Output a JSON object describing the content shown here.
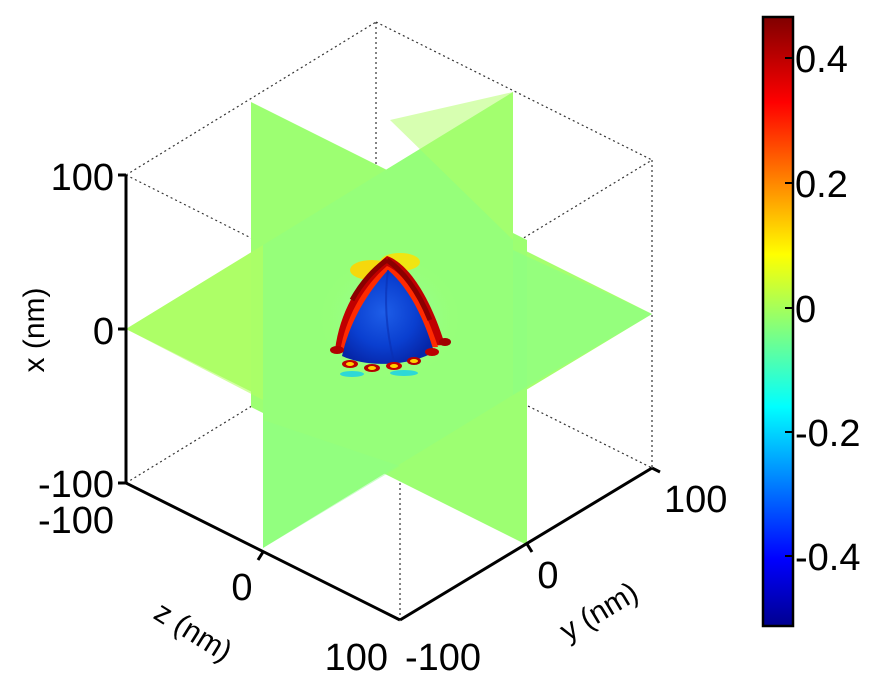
{
  "chart_data": {
    "type": "heatmap",
    "title": "",
    "axes": {
      "x": {
        "label": "x (nm)",
        "range": [
          -100,
          100
        ],
        "ticks": [
          "-100",
          "0",
          "100"
        ]
      },
      "y": {
        "label": "y (nm)",
        "range": [
          -100,
          100
        ],
        "ticks": [
          "-100",
          "0",
          "100"
        ]
      },
      "z": {
        "label": "z (nm)",
        "range": [
          -100,
          100
        ],
        "ticks": [
          "-100",
          "0",
          "100"
        ]
      }
    },
    "slices": [
      "x = 0",
      "y = 0",
      "z = 0"
    ],
    "background_value": 0.05,
    "features": [
      {
        "region": "pyramidal particle interior",
        "value": -0.45
      },
      {
        "region": "particle edges",
        "value": 0.45
      }
    ],
    "colorbar": {
      "colormap": "jet",
      "range": [
        -0.52,
        0.46
      ],
      "ticks": [
        "0.4",
        "0.2",
        "0",
        "-0.2",
        "-0.4"
      ],
      "tick_values": [
        0.4,
        0.2,
        0,
        -0.2,
        -0.4
      ]
    },
    "grid": false,
    "box": true
  }
}
